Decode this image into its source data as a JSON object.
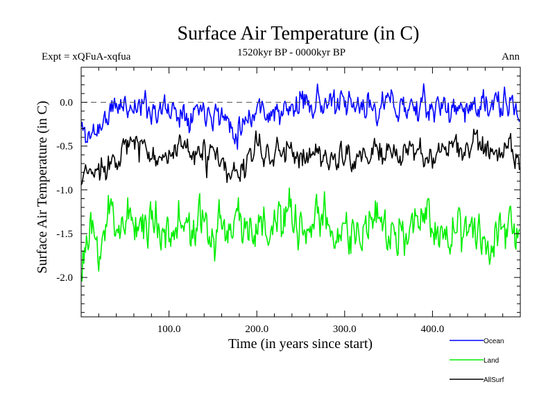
{
  "chart_data": {
    "type": "line",
    "title": "Surface Air Temperature (in C)",
    "subtitle_left": "Expt = xQFuA-xqfua",
    "subtitle_center": "1520kyr BP - 0000kyr BP",
    "subtitle_right": "Ann",
    "xlabel": "Time (in years since start)",
    "ylabel": "Surface Air Temperature (in C)",
    "xlim": [
      0,
      500
    ],
    "ylim": [
      -2.45,
      0.4
    ],
    "xticks": [
      {
        "value": 100,
        "label": "100.0"
      },
      {
        "value": 200,
        "label": "200.0"
      },
      {
        "value": 300,
        "label": "300.0"
      },
      {
        "value": 400,
        "label": "400.0"
      }
    ],
    "yticks": [
      {
        "value": 0.0,
        "label": "0.0"
      },
      {
        "value": -0.5,
        "label": "-0.5"
      },
      {
        "value": -1.0,
        "label": "-1.0"
      },
      {
        "value": -1.5,
        "label": "-1.5"
      },
      {
        "value": -2.0,
        "label": "-2.0"
      }
    ],
    "reference_line": 0.0,
    "n_years": 500,
    "series": [
      {
        "name": "Ocean",
        "color": "#0000ff",
        "mean": -0.12,
        "amplitude": 0.13,
        "seed": 11,
        "anchors": [
          [
            0,
            -0.3
          ],
          [
            8,
            -0.4
          ],
          [
            20,
            -0.28
          ],
          [
            40,
            -0.05
          ],
          [
            60,
            -0.02
          ],
          [
            100,
            -0.1
          ],
          [
            150,
            -0.05
          ],
          [
            175,
            -0.3
          ],
          [
            200,
            -0.05
          ],
          [
            230,
            -0.15
          ],
          [
            260,
            0.05
          ],
          [
            300,
            -0.08
          ],
          [
            350,
            -0.02
          ],
          [
            400,
            -0.08
          ],
          [
            450,
            -0.05
          ],
          [
            490,
            -0.05
          ],
          [
            499,
            -0.15
          ]
        ]
      },
      {
        "name": "Land",
        "color": "#00ee00",
        "mean": -1.45,
        "amplitude": 0.22,
        "seed": 23,
        "anchors": [
          [
            0,
            -1.8
          ],
          [
            8,
            -1.6
          ],
          [
            20,
            -1.7
          ],
          [
            30,
            -1.3
          ],
          [
            60,
            -1.35
          ],
          [
            100,
            -1.4
          ],
          [
            150,
            -1.5
          ],
          [
            175,
            -1.3
          ],
          [
            200,
            -1.45
          ],
          [
            250,
            -1.4
          ],
          [
            300,
            -1.45
          ],
          [
            350,
            -1.5
          ],
          [
            400,
            -1.4
          ],
          [
            450,
            -1.45
          ],
          [
            499,
            -1.45
          ]
        ]
      },
      {
        "name": "AllSurf",
        "color": "#000000",
        "mean": -0.62,
        "amplitude": 0.13,
        "seed": 37,
        "anchors": [
          [
            0,
            -0.95
          ],
          [
            8,
            -0.8
          ],
          [
            20,
            -0.8
          ],
          [
            40,
            -0.55
          ],
          [
            60,
            -0.5
          ],
          [
            100,
            -0.6
          ],
          [
            150,
            -0.6
          ],
          [
            170,
            -0.9
          ],
          [
            200,
            -0.55
          ],
          [
            250,
            -0.6
          ],
          [
            300,
            -0.62
          ],
          [
            350,
            -0.6
          ],
          [
            400,
            -0.58
          ],
          [
            450,
            -0.5
          ],
          [
            490,
            -0.55
          ],
          [
            499,
            -0.8
          ]
        ]
      }
    ],
    "legend": [
      "Ocean",
      "Land",
      "AllSurf"
    ],
    "legend_placement": "bottom-right"
  }
}
